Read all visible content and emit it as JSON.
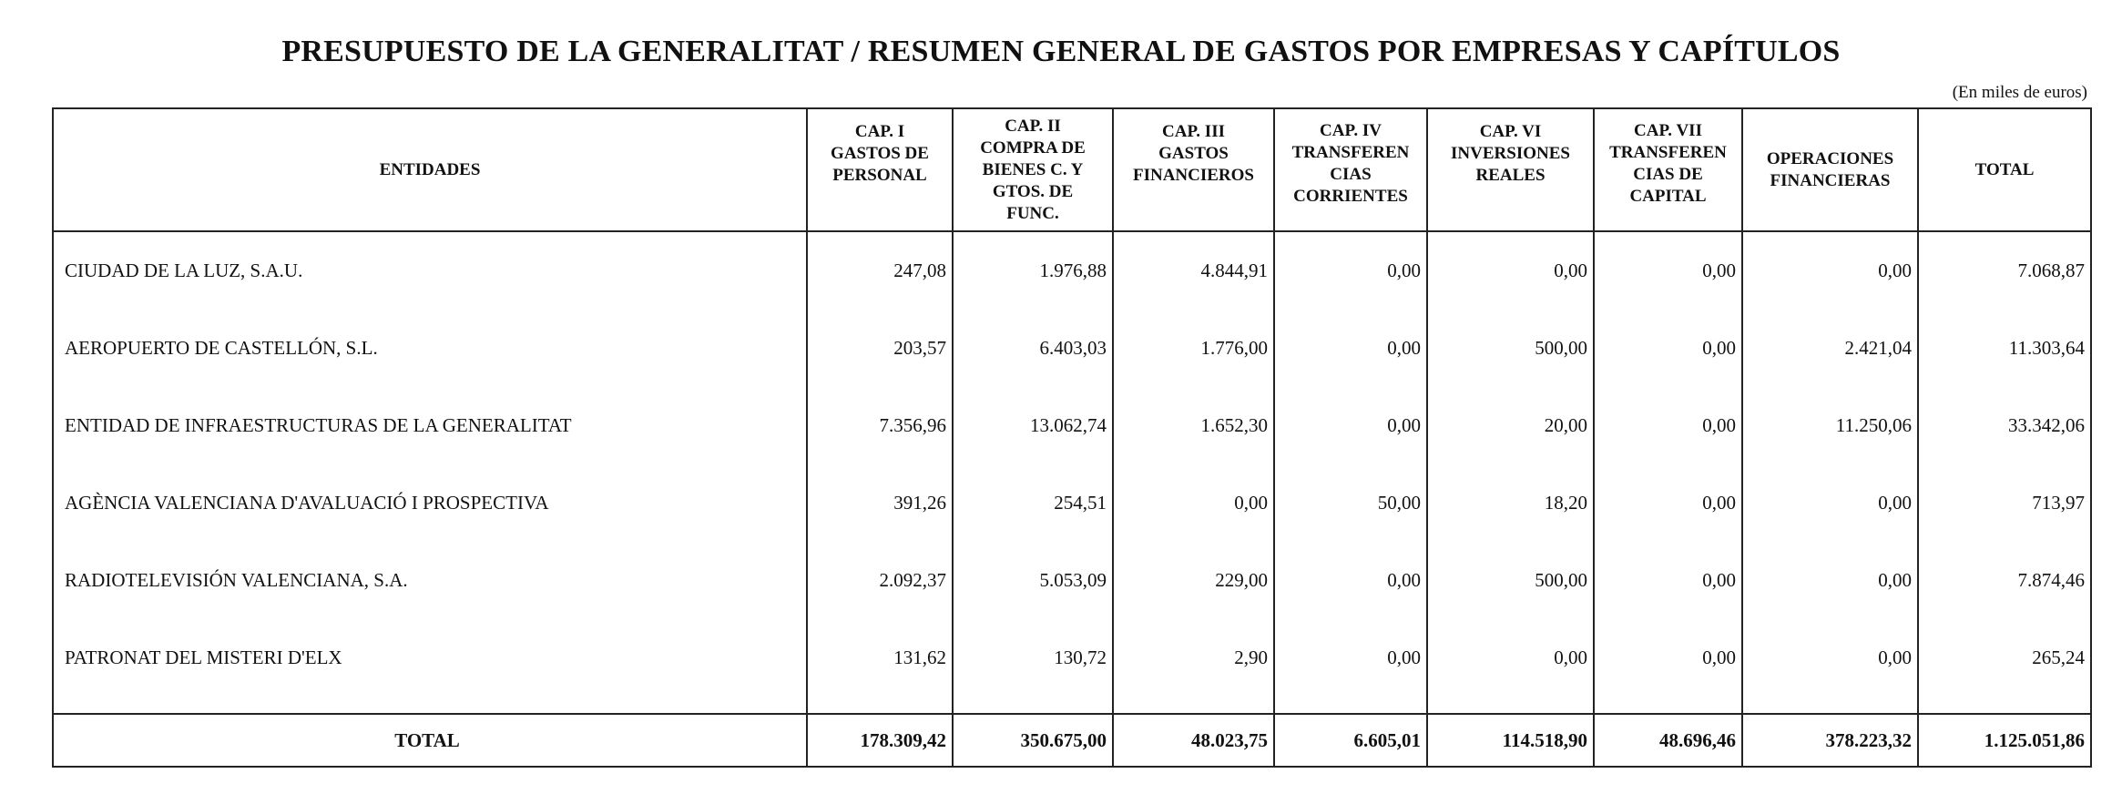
{
  "title": "PRESUPUESTO DE LA GENERALITAT / RESUMEN GENERAL DE GASTOS POR EMPRESAS Y CAPÍTULOS",
  "units": "(En miles de euros)",
  "columns": {
    "entidades": "ENTIDADES",
    "cap1": [
      "CAP. I",
      "GASTOS DE",
      "PERSONAL"
    ],
    "cap2": [
      "CAP. II",
      "COMPRA DE",
      "BIENES C. Y",
      "GTOS. DE",
      "FUNC."
    ],
    "cap3": [
      "CAP. III",
      "GASTOS",
      "FINANCIEROS"
    ],
    "cap4": [
      "CAP. IV",
      "TRANSFEREN",
      "CIAS",
      "CORRIENTES"
    ],
    "cap6": [
      "CAP. VI",
      "INVERSIONES",
      "REALES"
    ],
    "cap7": [
      "CAP. VII",
      "TRANSFEREN",
      "CIAS DE",
      "CAPITAL"
    ],
    "opfin": [
      "OPERACIONES",
      "FINANCIERAS"
    ],
    "total": "TOTAL"
  },
  "rows": [
    {
      "entity": "CIUDAD DE LA LUZ, S.A.U.",
      "cap1": "247,08",
      "cap2": "1.976,88",
      "cap3": "4.844,91",
      "cap4": "0,00",
      "cap6": "0,00",
      "cap7": "0,00",
      "opfin": "0,00",
      "total": "7.068,87"
    },
    {
      "entity": "AEROPUERTO DE CASTELLÓN, S.L.",
      "cap1": "203,57",
      "cap2": "6.403,03",
      "cap3": "1.776,00",
      "cap4": "0,00",
      "cap6": "500,00",
      "cap7": "0,00",
      "opfin": "2.421,04",
      "total": "11.303,64"
    },
    {
      "entity": "ENTIDAD DE INFRAESTRUCTURAS DE LA GENERALITAT",
      "cap1": "7.356,96",
      "cap2": "13.062,74",
      "cap3": "1.652,30",
      "cap4": "0,00",
      "cap6": "20,00",
      "cap7": "0,00",
      "opfin": "11.250,06",
      "total": "33.342,06"
    },
    {
      "entity": "AGÈNCIA VALENCIANA D'AVALUACIÓ I PROSPECTIVA",
      "cap1": "391,26",
      "cap2": "254,51",
      "cap3": "0,00",
      "cap4": "50,00",
      "cap6": "18,20",
      "cap7": "0,00",
      "opfin": "0,00",
      "total": "713,97"
    },
    {
      "entity": "RADIOTELEVISIÓN VALENCIANA, S.A.",
      "cap1": "2.092,37",
      "cap2": "5.053,09",
      "cap3": "229,00",
      "cap4": "0,00",
      "cap6": "500,00",
      "cap7": "0,00",
      "opfin": "0,00",
      "total": "7.874,46"
    },
    {
      "entity": "PATRONAT DEL MISTERI D'ELX",
      "cap1": "131,62",
      "cap2": "130,72",
      "cap3": "2,90",
      "cap4": "0,00",
      "cap6": "0,00",
      "cap7": "0,00",
      "opfin": "0,00",
      "total": "265,24"
    }
  ],
  "totals": {
    "label": "TOTAL",
    "cap1": "178.309,42",
    "cap2": "350.675,00",
    "cap3": "48.023,75",
    "cap4": "6.605,01",
    "cap6": "114.518,90",
    "cap7": "48.696,46",
    "opfin": "378.223,32",
    "total": "1.125.051,86"
  }
}
